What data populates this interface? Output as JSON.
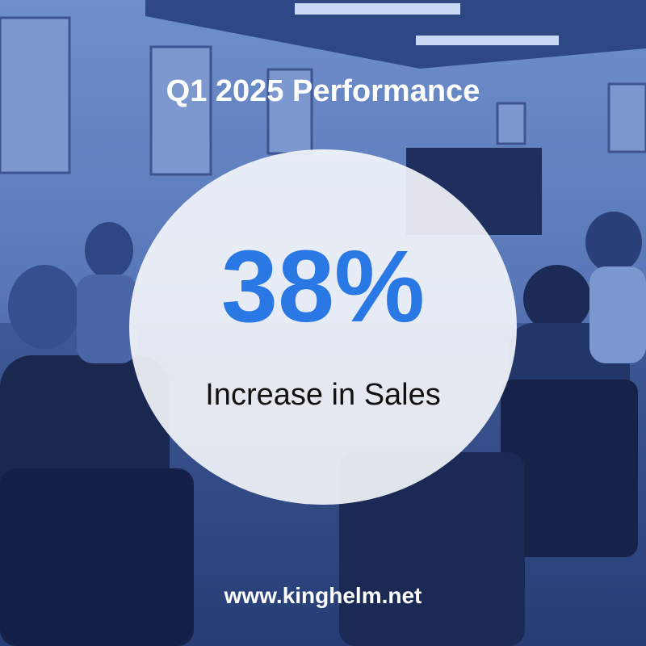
{
  "header": {
    "title": "Q1 2025 Performance"
  },
  "stat": {
    "value": "38%",
    "label": "Increase in Sales"
  },
  "footer": {
    "url": "www.kinghelm.net"
  }
}
